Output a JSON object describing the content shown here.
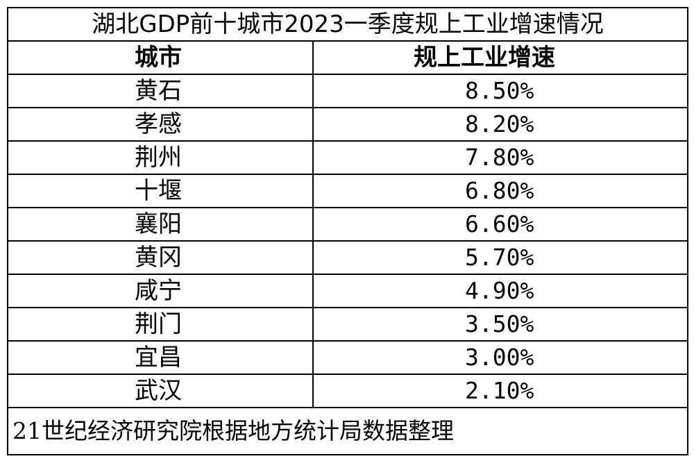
{
  "table": {
    "title": "湖北GDP前十城市2023一季度规上工业增速情况",
    "headers": {
      "city": "城市",
      "rate": "规上工业增速"
    },
    "rows": [
      {
        "city": "黄石",
        "rate": "8.50%"
      },
      {
        "city": "孝感",
        "rate": "8.20%"
      },
      {
        "city": "荆州",
        "rate": "7.80%"
      },
      {
        "city": "十堰",
        "rate": "6.80%"
      },
      {
        "city": "襄阳",
        "rate": "6.60%"
      },
      {
        "city": "黄冈",
        "rate": "5.70%"
      },
      {
        "city": "咸宁",
        "rate": "4.90%"
      },
      {
        "city": "荆门",
        "rate": "3.50%"
      },
      {
        "city": "宜昌",
        "rate": "3.00%"
      },
      {
        "city": "武汉",
        "rate": "2.10%"
      }
    ],
    "source": "21世纪经济研究院根据地方统计局数据整理"
  }
}
